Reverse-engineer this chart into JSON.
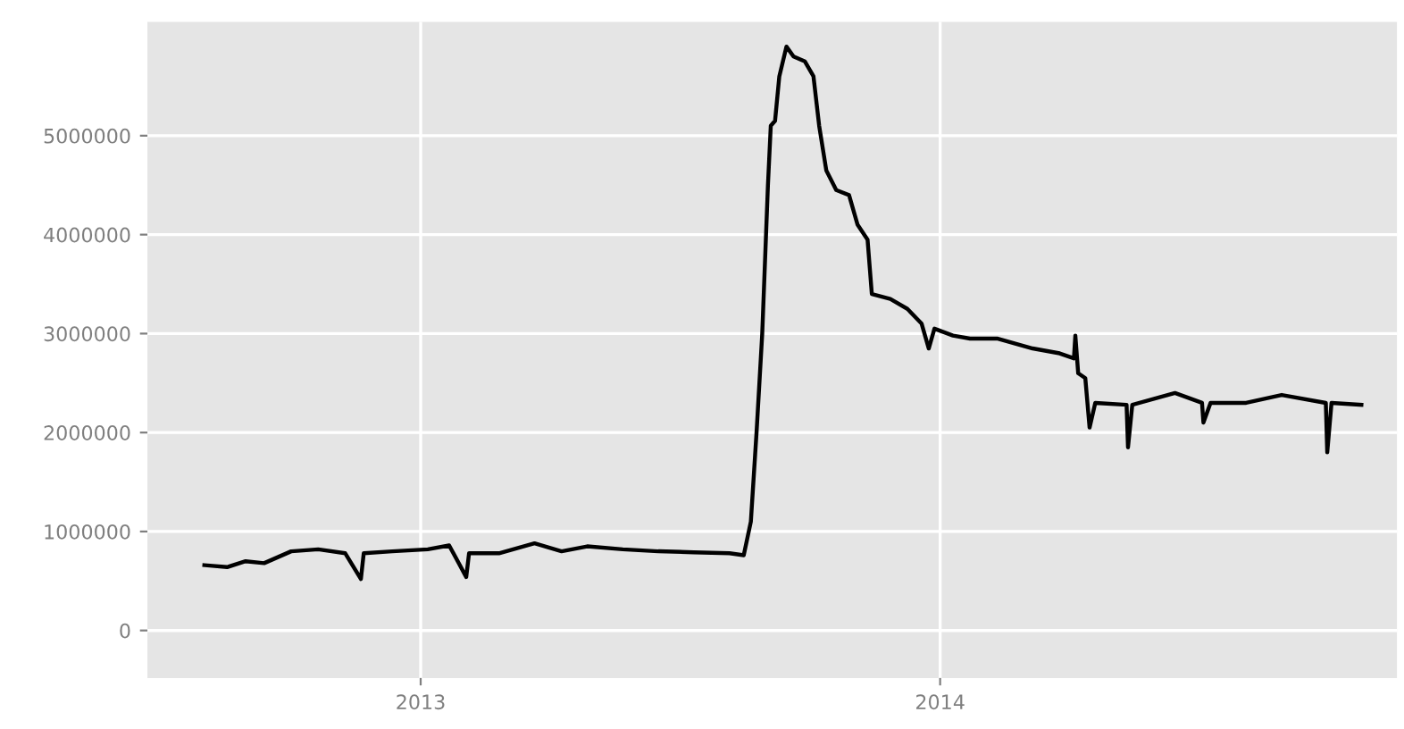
{
  "chart_data": {
    "type": "line",
    "x": [
      "2012-08-02",
      "2012-08-18",
      "2012-08-31",
      "2012-09-13",
      "2012-10-02",
      "2012-10-21",
      "2012-11-09",
      "2012-11-20",
      "2012-11-22",
      "2012-12-12",
      "2013-01-06",
      "2013-01-21",
      "2013-02-02",
      "2013-02-04",
      "2013-02-25",
      "2013-03-22",
      "2013-04-10",
      "2013-04-28",
      "2013-05-23",
      "2013-06-17",
      "2013-07-12",
      "2013-08-06",
      "2013-08-16",
      "2013-08-21",
      "2013-08-25",
      "2013-08-29",
      "2013-09-02",
      "2013-09-04",
      "2013-09-07",
      "2013-09-10",
      "2013-09-15",
      "2013-09-20",
      "2013-09-28",
      "2013-10-04",
      "2013-10-08",
      "2013-10-13",
      "2013-10-20",
      "2013-10-29",
      "2013-11-04",
      "2013-11-11",
      "2013-11-14",
      "2013-11-27",
      "2013-12-09",
      "2013-12-19",
      "2013-12-24",
      "2013-12-28",
      "2014-01-10",
      "2014-01-22",
      "2014-02-10",
      "2014-03-07",
      "2014-03-26",
      "2014-04-05",
      "2014-04-06",
      "2014-04-08",
      "2014-04-13",
      "2014-04-16",
      "2014-04-20",
      "2014-05-12",
      "2014-05-13",
      "2014-05-16",
      "2014-06-15",
      "2014-07-04",
      "2014-07-05",
      "2014-07-10",
      "2014-08-04",
      "2014-08-29",
      "2014-09-29",
      "2014-09-30",
      "2014-10-03",
      "2014-10-24"
    ],
    "series": [
      {
        "color": "#000000",
        "values": [
          660000,
          640000,
          700000,
          680000,
          800000,
          820000,
          780000,
          520000,
          780000,
          800000,
          820000,
          860000,
          540000,
          780000,
          780000,
          880000,
          800000,
          850000,
          820000,
          800000,
          790000,
          780000,
          760000,
          1100000,
          2000000,
          3000000,
          4500000,
          5100000,
          5150000,
          5600000,
          5900000,
          5800000,
          5750000,
          5600000,
          5100000,
          4650000,
          4450000,
          4400000,
          4100000,
          3950000,
          3400000,
          3350000,
          3250000,
          3100000,
          2850000,
          3050000,
          2980000,
          2950000,
          2950000,
          2850000,
          2800000,
          2750000,
          2980000,
          2600000,
          2550000,
          2050000,
          2300000,
          2280000,
          1850000,
          2280000,
          2400000,
          2300000,
          2100000,
          2300000,
          2300000,
          2380000,
          2300000,
          1800000,
          2300000,
          2280000
        ]
      }
    ],
    "xlim": [
      "2012-06-23",
      "2014-11-18"
    ],
    "xticks": [
      {
        "value": "2013-01-01",
        "label": "2013"
      },
      {
        "value": "2014-01-01",
        "label": "2014"
      }
    ],
    "ylim": [
      -480000,
      6150000
    ],
    "yticks": [
      0,
      1000000,
      2000000,
      3000000,
      4000000,
      5000000
    ],
    "grid": true,
    "marker": "none",
    "line_style": "solid"
  }
}
